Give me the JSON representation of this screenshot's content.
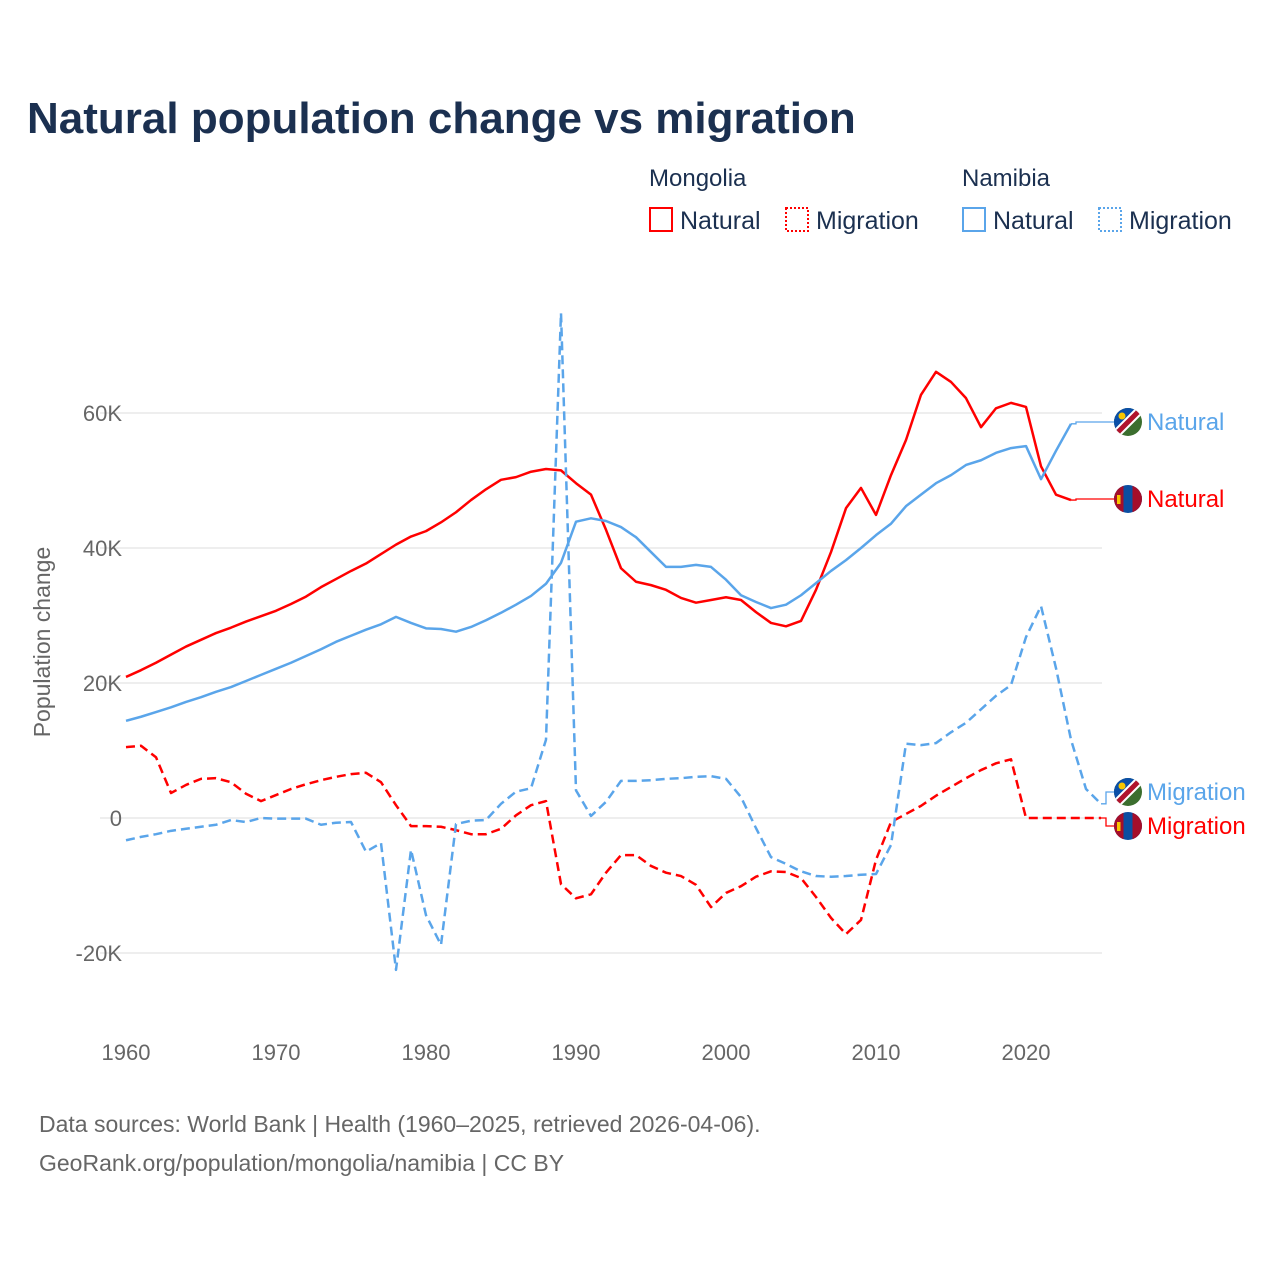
{
  "colors": {
    "mongolia": "#ff0000",
    "namibia": "#5aa5ea",
    "title": "#1b3050"
  },
  "chart_data": {
    "type": "line",
    "title": "Natural population change vs migration",
    "ylabel": "Population change",
    "xlabel": "",
    "xlim": [
      1960,
      2025
    ],
    "ylim": [
      -30000,
      75000
    ],
    "x_ticks": [
      1960,
      1970,
      1980,
      1990,
      2000,
      2010,
      2020
    ],
    "x_tick_labels": [
      "1960",
      "1970",
      "1980",
      "1990",
      "2000",
      "2010",
      "2020"
    ],
    "y_ticks": [
      -20000,
      0,
      20000,
      40000,
      60000
    ],
    "y_tick_labels": [
      "-20K",
      "0",
      "20K",
      "40K",
      "60K"
    ],
    "grid": true,
    "legend": {
      "placement": "top-right",
      "groups": [
        {
          "name": "Mongolia",
          "items": [
            "Natural",
            "Migration"
          ]
        },
        {
          "name": "Namibia",
          "items": [
            "Natural",
            "Migration"
          ]
        }
      ]
    },
    "series": [
      {
        "name": "Mongolia Natural",
        "country": "Mongolia",
        "kind": "Natural",
        "end_label": "Natural",
        "start": 1960,
        "values_k": [
          20.9,
          21.9,
          23.0,
          24.2,
          25.4,
          26.4,
          27.4,
          28.2,
          29.1,
          29.9,
          30.7,
          31.7,
          32.8,
          34.2,
          35.4,
          36.6,
          37.7,
          39.1,
          40.5,
          41.7,
          42.5,
          43.8,
          45.3,
          47.1,
          48.7,
          50.1,
          50.5,
          51.3,
          51.7,
          51.5,
          49.6,
          47.9,
          42.7,
          37.0,
          35.0,
          34.5,
          33.8,
          32.6,
          31.9,
          32.3,
          32.7,
          32.3,
          30.5,
          28.9,
          28.4,
          29.2,
          33.8,
          39.4,
          45.9,
          48.9,
          44.9,
          50.8,
          56.0,
          62.7,
          66.1,
          64.6,
          62.2,
          57.9,
          60.7,
          61.5,
          60.9,
          52.1,
          47.9,
          47.1
        ]
      },
      {
        "name": "Mongolia Migration",
        "country": "Mongolia",
        "kind": "Migration",
        "end_label": "Migration",
        "start": 1960,
        "values_k": [
          10.5,
          10.7,
          9.0,
          3.7,
          4.9,
          5.8,
          5.9,
          5.3,
          3.6,
          2.5,
          3.4,
          4.3,
          5.0,
          5.6,
          6.1,
          6.5,
          6.7,
          5.3,
          1.9,
          -1.2,
          -1.2,
          -1.3,
          -1.8,
          -2.4,
          -2.4,
          -1.6,
          0.4,
          1.9,
          2.5,
          -9.8,
          -11.9,
          -11.3,
          -8.1,
          -5.5,
          -5.5,
          -7.1,
          -8.1,
          -8.6,
          -9.9,
          -13.2,
          -11.1,
          -10.1,
          -8.7,
          -7.9,
          -8.0,
          -8.9,
          -11.7,
          -14.8,
          -17.2,
          -15.1,
          -6.2,
          -0.6,
          0.6,
          1.8,
          3.3,
          4.6,
          5.9,
          7.1,
          8.1,
          8.7,
          0,
          0,
          0,
          0,
          0,
          0
        ]
      },
      {
        "name": "Namibia Natural",
        "country": "Namibia",
        "kind": "Natural",
        "end_label": "Natural",
        "start": 1960,
        "values_k": [
          14.4,
          15.0,
          15.7,
          16.4,
          17.2,
          17.9,
          18.7,
          19.4,
          20.3,
          21.2,
          22.1,
          23.0,
          24.0,
          25.0,
          26.1,
          27.0,
          27.9,
          28.7,
          29.8,
          28.9,
          28.1,
          28.0,
          27.6,
          28.3,
          29.3,
          30.4,
          31.6,
          32.9,
          34.7,
          37.8,
          43.9,
          44.4,
          44.0,
          43.1,
          41.6,
          39.4,
          37.2,
          37.2,
          37.5,
          37.2,
          35.3,
          33.0,
          32.0,
          31.1,
          31.6,
          33.0,
          34.8,
          36.6,
          38.2,
          40.0,
          41.9,
          43.6,
          46.2,
          47.9,
          49.6,
          50.8,
          52.3,
          53.0,
          54.1,
          54.8,
          55.1,
          50.2,
          54.4,
          58.4
        ]
      },
      {
        "name": "Namibia Migration",
        "country": "Namibia",
        "kind": "Migration",
        "end_label": "Migration",
        "start": 1960,
        "values_k": [
          -3.3,
          -2.8,
          -2.4,
          -1.9,
          -1.6,
          -1.3,
          -1.0,
          -0.3,
          -0.6,
          0,
          -0.1,
          -0.1,
          -0.1,
          -1.0,
          -0.7,
          -0.6,
          -5.0,
          -3.7,
          -22.5,
          -4.7,
          -14.4,
          -18.8,
          -0.9,
          -0.4,
          -0.3,
          2.1,
          3.9,
          4.4,
          11.6,
          74.8,
          4.1,
          0.3,
          2.4,
          5.5,
          5.5,
          5.6,
          5.8,
          5.9,
          6.1,
          6.2,
          5.8,
          3.1,
          -1.5,
          -5.8,
          -6.8,
          -7.9,
          -8.6,
          -8.7,
          -8.6,
          -8.4,
          -8.3,
          -4.0,
          11.0,
          10.8,
          11.1,
          12.7,
          14.1,
          16.1,
          18.1,
          19.7,
          26.8,
          31.4,
          22.2,
          11.6,
          4.3,
          2.1
        ]
      }
    ]
  },
  "source": {
    "line1": "Data sources: World Bank | Health (1960–2025, retrieved 2026-04-06).",
    "line2": "GeoRank.org/population/mongolia/namibia | CC BY"
  }
}
